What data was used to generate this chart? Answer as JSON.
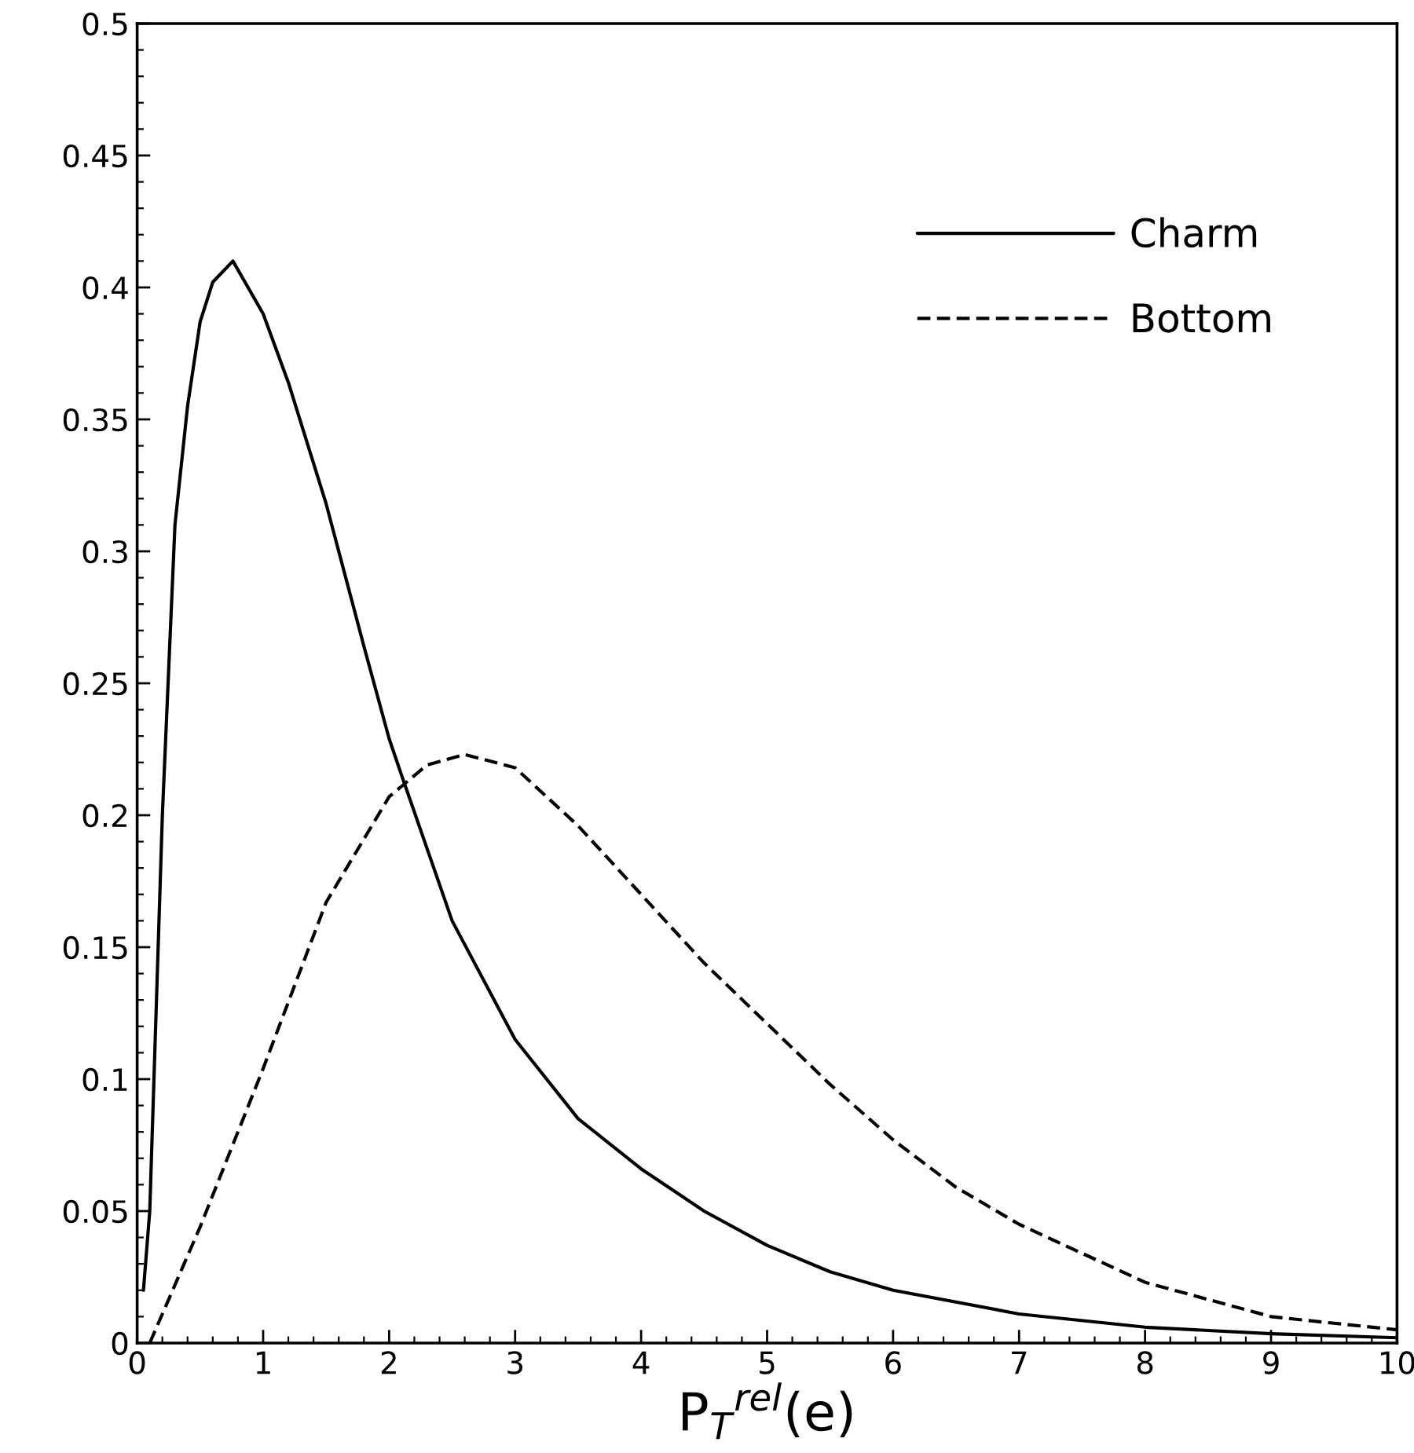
{
  "chart_data": {
    "type": "line",
    "xlabel": "P$_{T}$$^{rel}$(e)",
    "xlim": [
      0,
      10
    ],
    "ylim": [
      0,
      0.5
    ],
    "xticks": [
      0,
      1,
      2,
      3,
      4,
      5,
      6,
      7,
      8,
      9,
      10
    ],
    "yticks": [
      0,
      0.05,
      0.1,
      0.15,
      0.2,
      0.25,
      0.3,
      0.35,
      0.4,
      0.45,
      0.5
    ],
    "legend": "top right",
    "grid": false,
    "series": [
      {
        "name": "Charm",
        "color": "#000000",
        "line_style": "solid",
        "x": [
          0.05,
          0.1,
          0.2,
          0.3,
          0.4,
          0.5,
          0.6,
          0.76,
          1.0,
          1.2,
          1.5,
          1.8,
          2.0,
          2.1,
          2.5,
          3.0,
          3.5,
          4.0,
          4.5,
          5.0,
          5.5,
          6.0,
          7.0,
          8.0,
          9.0,
          10.0
        ],
        "values": [
          0.02,
          0.05,
          0.2,
          0.31,
          0.355,
          0.387,
          0.402,
          0.41,
          0.39,
          0.364,
          0.318,
          0.264,
          0.229,
          0.215,
          0.16,
          0.115,
          0.085,
          0.066,
          0.05,
          0.037,
          0.027,
          0.02,
          0.011,
          0.006,
          0.0035,
          0.002
        ]
      },
      {
        "name": "Bottom",
        "color": "#000000",
        "line_style": "dashed",
        "x": [
          0.1,
          0.5,
          1.0,
          1.5,
          2.0,
          2.3,
          2.6,
          3.0,
          3.5,
          4.0,
          4.5,
          5.0,
          5.5,
          6.0,
          6.5,
          7.0,
          8.0,
          9.0,
          10.0
        ],
        "values": [
          0.0,
          0.044,
          0.104,
          0.167,
          0.207,
          0.219,
          0.223,
          0.218,
          0.196,
          0.17,
          0.144,
          0.121,
          0.098,
          0.077,
          0.059,
          0.045,
          0.023,
          0.01,
          0.005
        ]
      }
    ]
  }
}
